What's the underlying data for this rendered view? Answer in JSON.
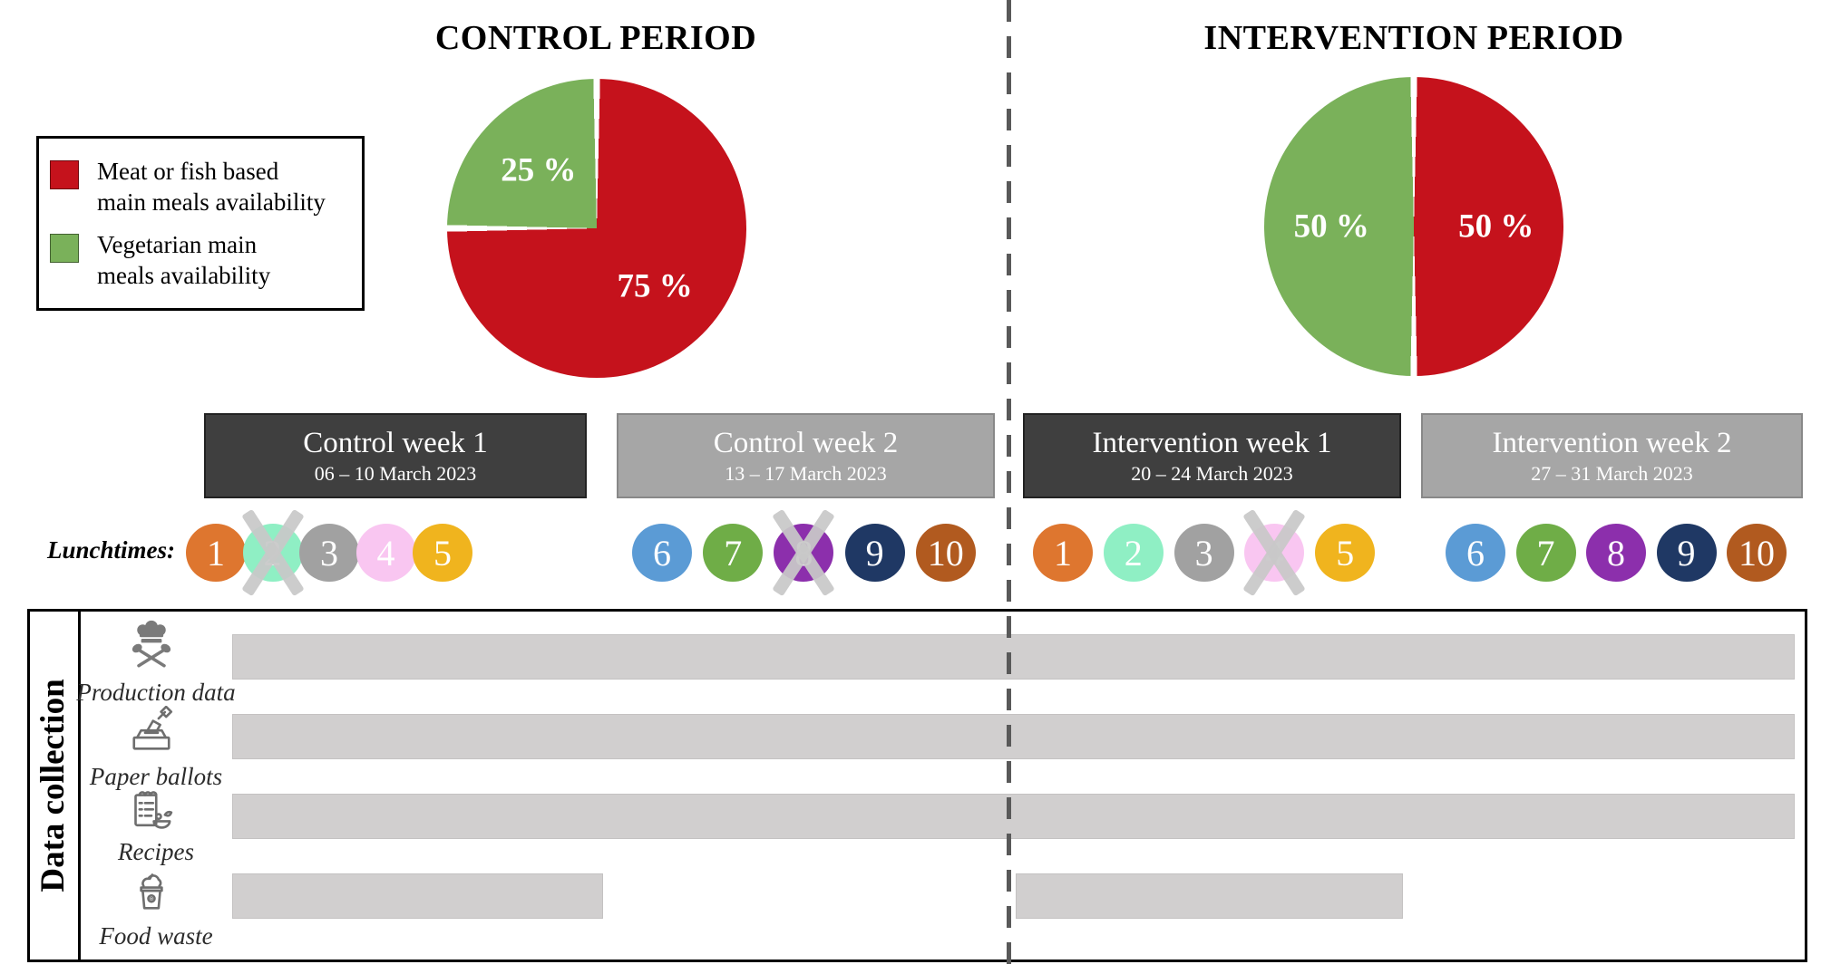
{
  "periods": [
    {
      "id": "control",
      "title": "CONTROL PERIOD"
    },
    {
      "id": "intervention",
      "title": "INTERVENTION PERIOD"
    }
  ],
  "legend": {
    "items": [
      {
        "color": "#C5121C",
        "lines": [
          "Meat or fish based",
          "main meals availability"
        ]
      },
      {
        "color": "#7AB15A",
        "lines": [
          "Vegetarian main",
          "meals availability"
        ]
      }
    ]
  },
  "chart_data": [
    {
      "type": "pie",
      "title": "CONTROL PERIOD",
      "legend_position": "left",
      "slices": [
        {
          "series": "Meat or fish based main meals availability",
          "label": "75 %",
          "value": 75,
          "color": "#C5121C"
        },
        {
          "series": "Vegetarian main meals availability",
          "label": "25 %",
          "value": 25,
          "color": "#7AB15A"
        }
      ]
    },
    {
      "type": "pie",
      "title": "INTERVENTION PERIOD",
      "slices": [
        {
          "series": "Meat or fish based main meals availability",
          "label": "50 %",
          "value": 50,
          "color": "#C5121C"
        },
        {
          "series": "Vegetarian main meals availability",
          "label": "50 %",
          "value": 50,
          "color": "#7AB15A"
        }
      ]
    }
  ],
  "weeks": [
    {
      "id": "control-week-1",
      "label": "Control week 1",
      "dates": "06 – 10 March 2023",
      "shade": "dark"
    },
    {
      "id": "control-week-2",
      "label": "Control week 2",
      "dates": "13 – 17 March 2023",
      "shade": "light"
    },
    {
      "id": "intervention-week-1",
      "label": "Intervention week 1",
      "dates": "20 – 24 March 2023",
      "shade": "dark"
    },
    {
      "id": "intervention-week-2",
      "label": "Intervention week 2",
      "dates": "27 – 31 March 2023",
      "shade": "light"
    }
  ],
  "lunchtimes": {
    "label": "Lunchtimes:",
    "groups": [
      {
        "week": "control-week-1",
        "circles": [
          {
            "n": "1",
            "color": "#DE762F",
            "crossed": false
          },
          {
            "n": "2",
            "color": "#8FEFC4",
            "crossed": true
          },
          {
            "n": "3",
            "color": "#A1A1A1",
            "crossed": false
          },
          {
            "n": "4",
            "color": "#F9C6F1",
            "crossed": false
          },
          {
            "n": "5",
            "color": "#F0B41E",
            "crossed": false
          }
        ]
      },
      {
        "week": "control-week-2",
        "circles": [
          {
            "n": "6",
            "color": "#5B9BD5",
            "crossed": false
          },
          {
            "n": "7",
            "color": "#6FAD47",
            "crossed": false
          },
          {
            "n": "8",
            "color": "#8C2FAC",
            "crossed": true
          },
          {
            "n": "9",
            "color": "#1F3864",
            "crossed": false
          },
          {
            "n": "10",
            "color": "#B15A1F",
            "crossed": false
          }
        ]
      },
      {
        "week": "intervention-week-1",
        "circles": [
          {
            "n": "1",
            "color": "#DE762F",
            "crossed": false
          },
          {
            "n": "2",
            "color": "#8FEFC4",
            "crossed": false
          },
          {
            "n": "3",
            "color": "#A1A1A1",
            "crossed": false
          },
          {
            "n": "4",
            "color": "#F9C6F1",
            "crossed": true
          },
          {
            "n": "5",
            "color": "#F0B41E",
            "crossed": false
          }
        ]
      },
      {
        "week": "intervention-week-2",
        "circles": [
          {
            "n": "6",
            "color": "#5B9BD5",
            "crossed": false
          },
          {
            "n": "7",
            "color": "#6FAD47",
            "crossed": false
          },
          {
            "n": "8",
            "color": "#8C2FAC",
            "crossed": false
          },
          {
            "n": "9",
            "color": "#1F3864",
            "crossed": false
          },
          {
            "n": "10",
            "color": "#B15A1F",
            "crossed": false
          }
        ]
      }
    ]
  },
  "data_collection": {
    "title": "Data collection",
    "bar_color": "#D1CFCF",
    "rows": [
      {
        "id": "production-data",
        "label": "Production data",
        "icon": "chef-hat-utensils-icon",
        "segments": [
          {
            "span": "all-weeks"
          }
        ]
      },
      {
        "id": "paper-ballots",
        "label": "Paper ballots",
        "icon": "ballot-box-icon",
        "segments": [
          {
            "span": "all-weeks"
          }
        ]
      },
      {
        "id": "recipes",
        "label": "Recipes",
        "icon": "recipe-notepad-icon",
        "segments": [
          {
            "span": "all-weeks"
          }
        ]
      },
      {
        "id": "food-waste",
        "label": "Food waste",
        "icon": "food-waste-bin-icon",
        "segments": [
          {
            "span": "control-week-1"
          },
          {
            "span": "intervention-week-1"
          }
        ]
      }
    ]
  }
}
